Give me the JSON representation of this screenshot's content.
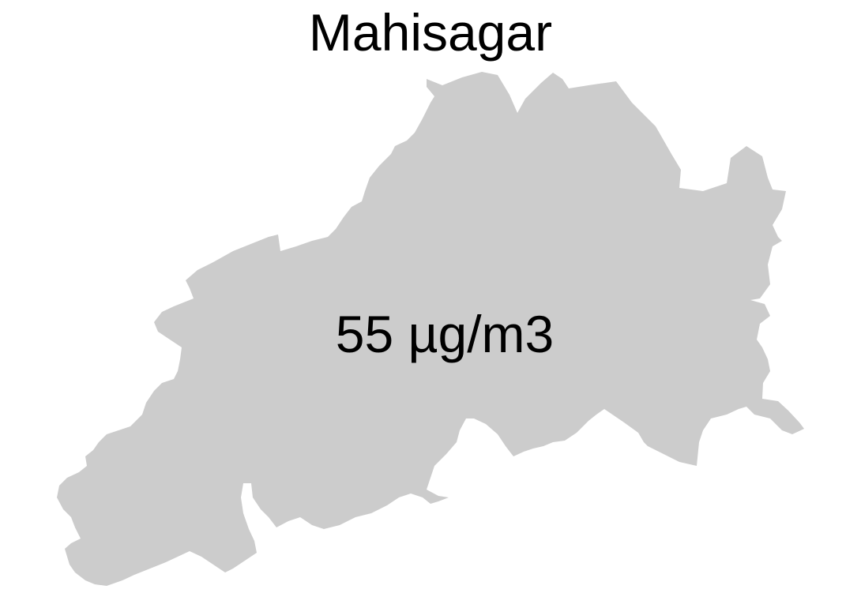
{
  "map": {
    "title": "Mahisagar",
    "value_label": "55 µg/m3",
    "region_fill": "#cccccc",
    "background": "#ffffff"
  }
}
